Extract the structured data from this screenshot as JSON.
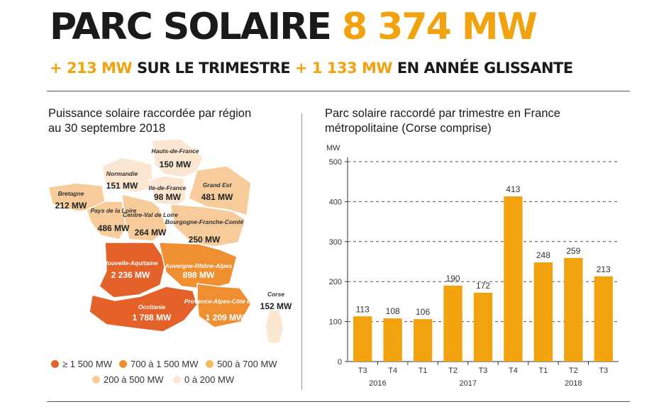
{
  "header": {
    "title_main": "PARC SOLAIRE",
    "title_value": "8 374 MW",
    "sub_value1": "+ 213 MW",
    "sub_text1": "SUR LE TRIMESTRE",
    "sub_value2": "+ 1 133 MW",
    "sub_text2": "EN ANNÉE GLISSANTE"
  },
  "colors": {
    "accent": "#f2a20c",
    "bar": "#f2a20c",
    "tier1": "#e4622a",
    "tier2": "#ef8f32",
    "tier3": "#f5b85a",
    "tier4": "#f7cc9a",
    "tier5": "#fbe6d2"
  },
  "map": {
    "title_line1": "Puissance solaire raccordée par région",
    "title_line2": "au 30 septembre 2018",
    "regions": [
      {
        "name": "Hauts-de-France",
        "value": "150 MW",
        "tier": "tier5"
      },
      {
        "name": "Normandie",
        "value": "151 MW",
        "tier": "tier5"
      },
      {
        "name": "Ile-de-France",
        "value": "98 MW",
        "tier": "tier5"
      },
      {
        "name": "Grand Est",
        "value": "481 MW",
        "tier": "tier4"
      },
      {
        "name": "Bretagne",
        "value": "212 MW",
        "tier": "tier4"
      },
      {
        "name": "Pays de la Loire",
        "value": "486 MW",
        "tier": "tier4"
      },
      {
        "name": "Centre-Val de Loire",
        "value": "264 MW",
        "tier": "tier4"
      },
      {
        "name": "Bourgogne-Franche-Comté",
        "value": "250 MW",
        "tier": "tier4"
      },
      {
        "name": "Nouvelle-Aquitaine",
        "value": "2 236 MW",
        "tier": "tier1"
      },
      {
        "name": "Auvergne-Rhône-Alpes",
        "value": "898 MW",
        "tier": "tier2"
      },
      {
        "name": "Occitanie",
        "value": "1 788 MW",
        "tier": "tier1"
      },
      {
        "name": "Provence-Alpes-Côte d'Azur",
        "value": "1 209 MW",
        "tier": "tier2"
      },
      {
        "name": "Corse",
        "value": "152 MW",
        "tier": "tier5"
      }
    ],
    "legend": [
      {
        "label": "≥ 1 500 MW",
        "tier": "tier1"
      },
      {
        "label": "700 à 1 500 MW",
        "tier": "tier2"
      },
      {
        "label": "500 à 700 MW",
        "tier": "tier3"
      },
      {
        "label": "200 à 500 MW",
        "tier": "tier4"
      },
      {
        "label": "0 à 200 MW",
        "tier": "tier5"
      }
    ]
  },
  "chart_data": {
    "type": "bar",
    "title": "Parc solaire raccordé par trimestre en France métropolitaine (Corse comprise)",
    "title_line1": "Parc solaire raccordé par trimestre en France",
    "title_line2": "métropolitaine (Corse comprise)",
    "ylabel": "MW",
    "ylim": [
      0,
      500
    ],
    "yticks": [
      0,
      100,
      200,
      300,
      400,
      500
    ],
    "grid": true,
    "categories": [
      "T3",
      "T4",
      "T1",
      "T2",
      "T3",
      "T4",
      "T1",
      "T2",
      "T3"
    ],
    "values": [
      113,
      108,
      106,
      190,
      172,
      413,
      248,
      259,
      213
    ],
    "years": [
      {
        "label": "2016",
        "from": 0,
        "to": 1
      },
      {
        "label": "2017",
        "from": 2,
        "to": 5
      },
      {
        "label": "2018",
        "from": 6,
        "to": 8
      }
    ]
  }
}
